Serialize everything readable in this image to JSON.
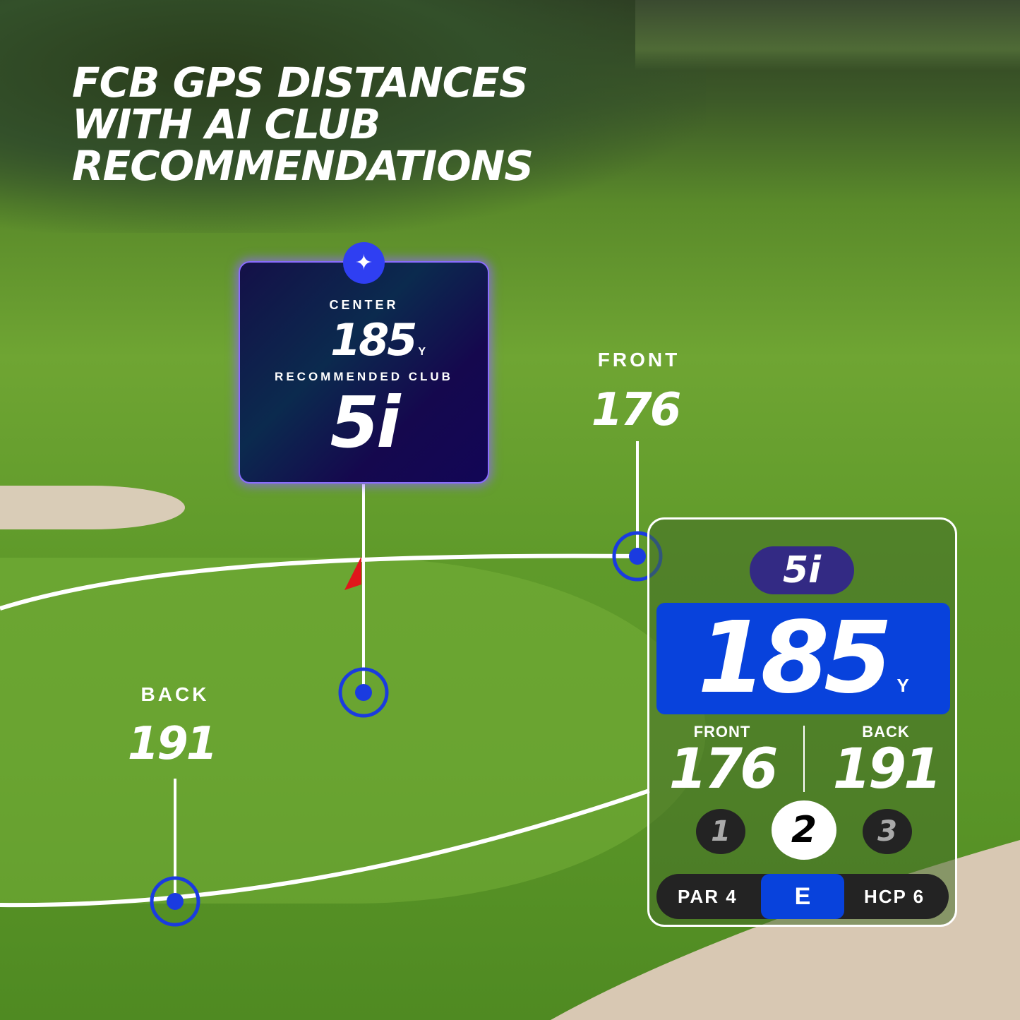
{
  "headline": {
    "line1": "FCB GPS DISTANCES",
    "line2": "WITH AI CLUB",
    "line3": "RECOMMENDATIONS"
  },
  "ai_card": {
    "icon": "sparkle-icon",
    "center_label": "CENTER",
    "center_distance": "185",
    "unit": "Y",
    "rec_label": "RECOMMENDED CLUB",
    "club": "5i"
  },
  "map_labels": {
    "front_label": "FRONT",
    "front_value": "176",
    "back_label": "BACK",
    "back_value": "191"
  },
  "watch": {
    "club": "5i",
    "distance": "185",
    "unit": "Y",
    "front_label": "FRONT",
    "front_value": "176",
    "back_label": "BACK",
    "back_value": "191",
    "shots": [
      "1",
      "2",
      "3"
    ],
    "active_shot": "2",
    "par": "PAR 4",
    "score": "E",
    "hcp": "HCP 6"
  },
  "colors": {
    "accent_blue": "#0842dc",
    "marker_blue": "#1a3be0",
    "club_pill": "#332a84",
    "card_bg": "#140a50",
    "glow": "#8a6cff"
  }
}
